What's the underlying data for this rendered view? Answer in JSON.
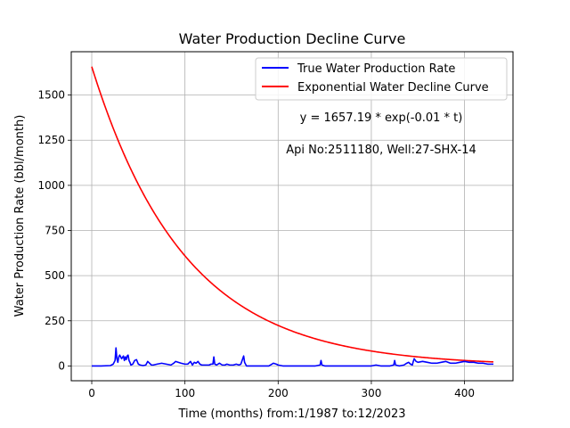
{
  "chart_data": {
    "type": "line",
    "title": "Water Production Decline Curve",
    "xlabel": "Time (months) from:1/1987 to:12/2023",
    "ylabel": "Water Production Rate (bbl/month)",
    "xlim": [
      -22,
      452
    ],
    "ylim": [
      -82,
      1740
    ],
    "xticks": [
      0,
      100,
      200,
      300,
      400
    ],
    "yticks": [
      0,
      250,
      500,
      750,
      1000,
      1250,
      1500
    ],
    "grid": true,
    "legend_position": "top-right",
    "annotations": [
      "y = 1657.19 * exp(-0.01 * t)",
      "Api No:2511180, Well:27-SHX-14"
    ],
    "series": [
      {
        "name": "True Water Production Rate",
        "color": "#0000ff",
        "x": [
          0,
          10,
          20,
          23,
          25,
          26,
          27,
          28,
          29,
          30,
          32,
          34,
          35,
          36,
          37,
          38,
          39,
          40,
          41,
          42,
          44,
          46,
          48,
          50,
          52,
          55,
          58,
          60,
          62,
          64,
          66,
          70,
          75,
          80,
          85,
          88,
          90,
          93,
          96,
          100,
          103,
          106,
          108,
          110,
          112,
          114,
          116,
          118,
          120,
          123,
          126,
          128,
          130,
          131,
          132,
          134,
          137,
          140,
          143,
          145,
          148,
          152,
          155,
          158,
          160,
          162,
          163,
          164,
          165,
          166,
          170,
          180,
          190,
          195,
          198,
          200,
          205,
          210,
          220,
          230,
          240,
          245,
          246,
          247,
          250,
          260,
          270,
          280,
          290,
          300,
          305,
          310,
          320,
          324,
          325,
          326,
          330,
          335,
          338,
          340,
          342,
          344,
          345,
          346,
          348,
          350,
          355,
          360,
          365,
          370,
          375,
          380,
          385,
          390,
          395,
          400,
          405,
          410,
          415,
          420,
          425,
          431
        ],
        "values": [
          0,
          0,
          2,
          10,
          30,
          100,
          40,
          20,
          50,
          60,
          40,
          55,
          30,
          50,
          35,
          55,
          60,
          30,
          20,
          5,
          10,
          30,
          35,
          10,
          5,
          2,
          5,
          25,
          15,
          5,
          5,
          10,
          15,
          10,
          5,
          15,
          25,
          20,
          15,
          10,
          10,
          25,
          5,
          20,
          15,
          25,
          10,
          5,
          5,
          5,
          5,
          10,
          10,
          50,
          10,
          5,
          15,
          5,
          5,
          10,
          5,
          5,
          10,
          5,
          10,
          40,
          55,
          20,
          10,
          0,
          0,
          0,
          0,
          15,
          10,
          5,
          0,
          0,
          0,
          0,
          0,
          5,
          30,
          5,
          0,
          0,
          0,
          0,
          0,
          0,
          5,
          0,
          0,
          5,
          30,
          5,
          0,
          5,
          15,
          20,
          10,
          5,
          25,
          40,
          25,
          20,
          25,
          20,
          15,
          15,
          20,
          25,
          15,
          15,
          20,
          25,
          20,
          20,
          15,
          15,
          10,
          10
        ]
      },
      {
        "name": "Exponential Water Decline Curve",
        "color": "#ff0000",
        "equation": {
          "a": 1657.19,
          "b": 0.01
        },
        "x_range": [
          0,
          431
        ]
      }
    ]
  }
}
